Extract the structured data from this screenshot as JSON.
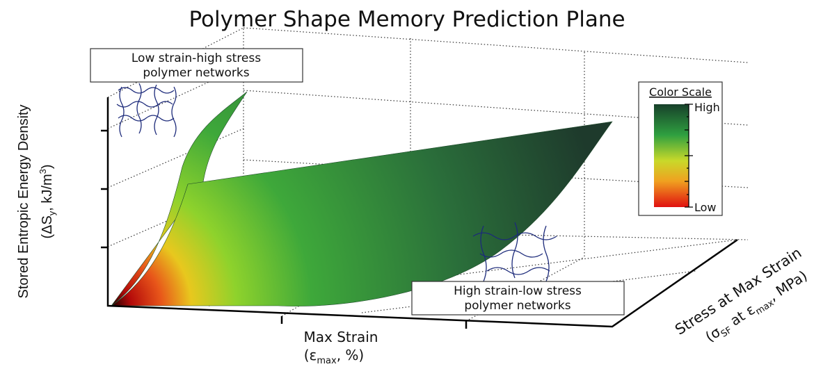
{
  "chart_data": {
    "type": "surface",
    "title": "Polymer Shape Memory Prediction Plane",
    "y_label": {
      "line1": "Stored Entropic Energy Density",
      "line2": [
        "(ΔS",
        "y",
        ", kJ/m",
        "3",
        ")"
      ]
    },
    "x_label": {
      "line1": "Max Strain",
      "line2": [
        "(ε",
        "max",
        ", %)"
      ]
    },
    "z_label": {
      "line1": "Stress at Max Strain",
      "line2": [
        "(σ",
        "SF",
        " at ε",
        "max",
        ", MPa)"
      ]
    },
    "annotations": [
      {
        "lines": [
          "Low strain-high stress",
          "polymer networks"
        ]
      },
      {
        "lines": [
          "High strain-low stress",
          "polymer networks"
        ]
      }
    ],
    "colorbar": {
      "title": "Color Scale",
      "high": "High",
      "low": "Low"
    }
  }
}
